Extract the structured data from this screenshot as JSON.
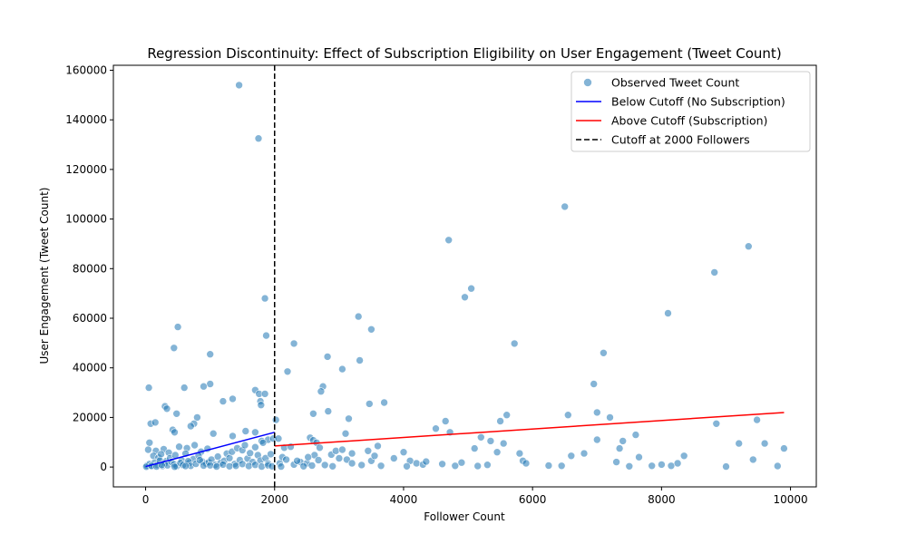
{
  "chart_data": {
    "type": "scatter",
    "title": "Regression Discontinuity: Effect of Subscription Eligibility on User Engagement (Tweet Count)",
    "xlabel": "Follower Count",
    "ylabel": "User Engagement (Tweet Count)",
    "xlim": [
      -500,
      10400
    ],
    "ylim": [
      -8000,
      162000
    ],
    "xticks": [
      0,
      2000,
      4000,
      6000,
      8000,
      10000
    ],
    "yticks": [
      0,
      20000,
      40000,
      60000,
      80000,
      100000,
      120000,
      140000,
      160000
    ],
    "grid": false,
    "legend_position": "top-right",
    "colors": {
      "points": "#1f77b4",
      "below_line": "#0000ff",
      "above_line": "#ff0000",
      "cutoff": "#000000"
    },
    "legend": [
      {
        "label": "Observed Tweet Count",
        "kind": "marker",
        "color": "#1f77b4"
      },
      {
        "label": "Below Cutoff (No Subscription)",
        "kind": "line",
        "color": "#0000ff"
      },
      {
        "label": "Above Cutoff (Subscription)",
        "kind": "line",
        "color": "#ff0000"
      },
      {
        "label": "Cutoff at 2000 Followers",
        "kind": "dashed",
        "color": "#000000"
      }
    ],
    "cutoff": 2000,
    "below_fit": {
      "x": [
        0,
        2000
      ],
      "y": [
        200,
        14000
      ]
    },
    "above_fit": {
      "x": [
        2000,
        9900
      ],
      "y": [
        8500,
        22000
      ]
    },
    "points": [
      [
        1450,
        154000
      ],
      [
        1750,
        132500
      ],
      [
        1850,
        68000
      ],
      [
        1870,
        53000
      ],
      [
        500,
        56500
      ],
      [
        440,
        48000
      ],
      [
        1000,
        45500
      ],
      [
        2300,
        49800
      ],
      [
        2200,
        38500
      ],
      [
        1700,
        31000
      ],
      [
        1760,
        29500
      ],
      [
        1850,
        29500
      ],
      [
        1780,
        26500
      ],
      [
        1790,
        25000
      ],
      [
        1350,
        27500
      ],
      [
        1200,
        26500
      ],
      [
        1000,
        33500
      ],
      [
        900,
        32500
      ],
      [
        600,
        32000
      ],
      [
        50,
        32000
      ],
      [
        300,
        24500
      ],
      [
        330,
        23500
      ],
      [
        480,
        21500
      ],
      [
        800,
        20000
      ],
      [
        750,
        17500
      ],
      [
        700,
        16500
      ],
      [
        420,
        15000
      ],
      [
        450,
        14000
      ],
      [
        1550,
        14500
      ],
      [
        1700,
        14000
      ],
      [
        80,
        17500
      ],
      [
        150,
        18000
      ],
      [
        1050,
        13500
      ],
      [
        1350,
        12500
      ],
      [
        1800,
        10500
      ],
      [
        1900,
        11000
      ],
      [
        1980,
        11500
      ],
      [
        60,
        9800
      ],
      [
        160,
        6500
      ],
      [
        280,
        7200
      ],
      [
        360,
        5800
      ],
      [
        520,
        8200
      ],
      [
        640,
        7600
      ],
      [
        760,
        8800
      ],
      [
        860,
        6200
      ],
      [
        960,
        7400
      ],
      [
        40,
        7000
      ],
      [
        120,
        4500
      ],
      [
        200,
        3800
      ],
      [
        240,
        5200
      ],
      [
        320,
        2400
      ],
      [
        380,
        3600
      ],
      [
        460,
        4800
      ],
      [
        560,
        2600
      ],
      [
        620,
        5400
      ],
      [
        680,
        1800
      ],
      [
        740,
        3200
      ],
      [
        820,
        4600
      ],
      [
        880,
        2200
      ],
      [
        940,
        1400
      ],
      [
        20,
        600
      ],
      [
        60,
        1200
      ],
      [
        100,
        300
      ],
      [
        140,
        1800
      ],
      [
        180,
        900
      ],
      [
        220,
        2600
      ],
      [
        260,
        400
      ],
      [
        300,
        1500
      ],
      [
        340,
        700
      ],
      [
        400,
        2000
      ],
      [
        440,
        1100
      ],
      [
        480,
        300
      ],
      [
        540,
        1600
      ],
      [
        580,
        800
      ],
      [
        660,
        2400
      ],
      [
        700,
        500
      ],
      [
        780,
        1300
      ],
      [
        840,
        2800
      ],
      [
        900,
        600
      ],
      [
        980,
        1900
      ],
      [
        1020,
        3000
      ],
      [
        1080,
        900
      ],
      [
        1120,
        4200
      ],
      [
        1160,
        1600
      ],
      [
        1220,
        2500
      ],
      [
        1260,
        5400
      ],
      [
        1300,
        3600
      ],
      [
        1340,
        6200
      ],
      [
        1380,
        1200
      ],
      [
        1420,
        7600
      ],
      [
        1460,
        2800
      ],
      [
        1500,
        6800
      ],
      [
        1540,
        8800
      ],
      [
        1580,
        3400
      ],
      [
        1620,
        5600
      ],
      [
        1660,
        2000
      ],
      [
        1700,
        8000
      ],
      [
        1740,
        4800
      ],
      [
        1780,
        2600
      ],
      [
        1820,
        9800
      ],
      [
        1860,
        3600
      ],
      [
        1900,
        1400
      ],
      [
        1940,
        5200
      ],
      [
        1000,
        700
      ],
      [
        1100,
        200
      ],
      [
        1200,
        1000
      ],
      [
        1300,
        300
      ],
      [
        1400,
        500
      ],
      [
        1500,
        1200
      ],
      [
        1600,
        400
      ],
      [
        1700,
        900
      ],
      [
        1800,
        200
      ],
      [
        1900,
        700
      ],
      [
        1960,
        300
      ],
      [
        10,
        100
      ],
      [
        90,
        500
      ],
      [
        170,
        200
      ],
      [
        250,
        800
      ],
      [
        450,
        100
      ],
      [
        620,
        400
      ],
      [
        2020,
        19000
      ],
      [
        2060,
        11500
      ],
      [
        2080,
        1500
      ],
      [
        2120,
        4000
      ],
      [
        2150,
        7800
      ],
      [
        2250,
        8200
      ],
      [
        2400,
        2000
      ],
      [
        2500,
        1500
      ],
      [
        2550,
        11800
      ],
      [
        2600,
        10800
      ],
      [
        2620,
        4800
      ],
      [
        2650,
        9800
      ],
      [
        2700,
        7800
      ],
      [
        2750,
        32500
      ],
      [
        2720,
        30500
      ],
      [
        2600,
        21500
      ],
      [
        2820,
        44500
      ],
      [
        2830,
        22500
      ],
      [
        2880,
        5000
      ],
      [
        2950,
        6500
      ],
      [
        3050,
        39500
      ],
      [
        3100,
        13500
      ],
      [
        3150,
        19500
      ],
      [
        3050,
        7000
      ],
      [
        3120,
        3000
      ],
      [
        3200,
        5500
      ],
      [
        3300,
        60700
      ],
      [
        3320,
        43000
      ],
      [
        3500,
        55500
      ],
      [
        3470,
        25500
      ],
      [
        3700,
        26000
      ],
      [
        3450,
        6500
      ],
      [
        3500,
        2500
      ],
      [
        3550,
        4500
      ],
      [
        3600,
        8500
      ],
      [
        3850,
        3500
      ],
      [
        4000,
        6000
      ],
      [
        4100,
        2500
      ],
      [
        4200,
        1500
      ],
      [
        4300,
        1000
      ],
      [
        4500,
        15500
      ],
      [
        4650,
        18500
      ],
      [
        4700,
        91500
      ],
      [
        4720,
        14000
      ],
      [
        4950,
        68500
      ],
      [
        5050,
        72000
      ],
      [
        5100,
        7500
      ],
      [
        5200,
        12000
      ],
      [
        5350,
        10500
      ],
      [
        5450,
        6000
      ],
      [
        5500,
        18500
      ],
      [
        5600,
        21000
      ],
      [
        5550,
        9500
      ],
      [
        5720,
        49800
      ],
      [
        5800,
        5500
      ],
      [
        5850,
        2500
      ],
      [
        5900,
        1500
      ],
      [
        6450,
        500
      ],
      [
        6500,
        105000
      ],
      [
        6550,
        21000
      ],
      [
        6600,
        4500
      ],
      [
        6800,
        5500
      ],
      [
        6950,
        33500
      ],
      [
        7000,
        11000
      ],
      [
        7000,
        22000
      ],
      [
        7100,
        46000
      ],
      [
        7200,
        20000
      ],
      [
        7300,
        2000
      ],
      [
        7350,
        7500
      ],
      [
        7400,
        10500
      ],
      [
        7600,
        13000
      ],
      [
        7650,
        4000
      ],
      [
        7850,
        500
      ],
      [
        8000,
        1000
      ],
      [
        8100,
        62000
      ],
      [
        8150,
        500
      ],
      [
        8250,
        1500
      ],
      [
        8350,
        4500
      ],
      [
        8820,
        78500
      ],
      [
        8850,
        17500
      ],
      [
        9200,
        9500
      ],
      [
        9350,
        89000
      ],
      [
        9420,
        3000
      ],
      [
        9480,
        19000
      ],
      [
        9600,
        9500
      ],
      [
        9900,
        7500
      ],
      [
        2100,
        200
      ],
      [
        2180,
        3000
      ],
      [
        2300,
        1000
      ],
      [
        2350,
        2500
      ],
      [
        2450,
        300
      ],
      [
        2520,
        4000
      ],
      [
        2580,
        600
      ],
      [
        2680,
        2800
      ],
      [
        2780,
        800
      ],
      [
        2900,
        300
      ],
      [
        3000,
        3500
      ],
      [
        3200,
        1500
      ],
      [
        3350,
        800
      ],
      [
        3650,
        500
      ],
      [
        4050,
        300
      ],
      [
        4350,
        2200
      ],
      [
        4600,
        1200
      ],
      [
        4800,
        500
      ],
      [
        4900,
        1800
      ],
      [
        5150,
        400
      ],
      [
        5300,
        900
      ],
      [
        6250,
        600
      ],
      [
        7500,
        300
      ],
      [
        9000,
        200
      ],
      [
        9800,
        400
      ]
    ]
  }
}
